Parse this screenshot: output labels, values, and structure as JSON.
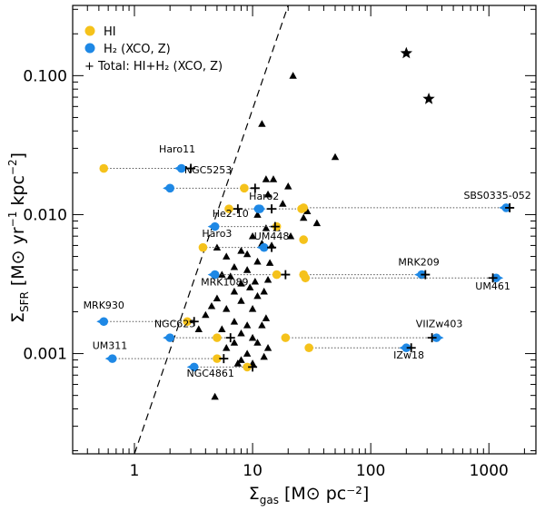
{
  "chart_data": {
    "type": "scatter",
    "xlabel": "Σgas [M⊙ pc⁻²]",
    "ylabel": "ΣSFR [M⊙ yr⁻¹ kpc⁻²]",
    "xlabel_main": "Σ",
    "xlabel_sub": "gas",
    "xlabel_unit": "[M⊙ pc⁻²]",
    "ylabel_main": "Σ",
    "ylabel_sub": "SFR",
    "ylabel_unit_pre": "[M⊙ yr",
    "ylabel_unit_exp1": "−1",
    "ylabel_unit_mid": " kpc",
    "ylabel_unit_exp2": "−2",
    "ylabel_unit_post": "]",
    "xscale": "log",
    "yscale": "log",
    "xlim": [
      0.3,
      2500
    ],
    "ylim": [
      0.00019,
      0.32
    ],
    "xticks": [
      {
        "value": 1,
        "label": "1"
      },
      {
        "value": 10,
        "label": "10"
      },
      {
        "value": 100,
        "label": "100"
      },
      {
        "value": 1000,
        "label": "1000"
      }
    ],
    "yticks": [
      {
        "value": 0.001,
        "label": "0.001"
      },
      {
        "value": 0.01,
        "label": "0.010"
      },
      {
        "value": 0.1,
        "label": "0.100"
      }
    ],
    "legend": {
      "placement": "top-left",
      "entries": [
        {
          "marker": "circle",
          "color": "#f5c21b",
          "label": "HI"
        },
        {
          "marker": "circle",
          "color": "#1e88e5",
          "label": "H₂ (XCO, Z)"
        },
        {
          "marker": "plus",
          "color": "#000000",
          "label": "+ Total: HI+H₂ (XCO, Z)"
        }
      ]
    },
    "colors": {
      "hi": "#f5c21b",
      "h2": "#1e88e5",
      "total": "#000000",
      "reference": "#000000"
    },
    "fit_line": {
      "style": "dashed",
      "points": [
        [
          1,
          0.00019
        ],
        [
          20,
          0.32
        ]
      ]
    },
    "galaxies": [
      {
        "name": "Haro11",
        "sfr": 0.0215,
        "hi": 0.55,
        "h2": 2.5,
        "total": 3.0,
        "label_x": 2.3,
        "label_sfr": 0.028,
        "label_anchor": "middle"
      },
      {
        "name": "NGC5253",
        "sfr": 0.0155,
        "hi": 8.5,
        "h2": 2.0,
        "total": 10.5,
        "label_x": 4.2,
        "label_sfr": 0.0198,
        "label_anchor": "middle"
      },
      {
        "name": "Haro2",
        "sfr": 0.011,
        "hi": 26.0,
        "h2": 11.5,
        "total": 14.5,
        "label_x": 12.5,
        "label_sfr": 0.0128,
        "label_anchor": "middle"
      },
      {
        "name": "",
        "sfr": 0.011,
        "hi": 6.3,
        "h2": 11.2,
        "total": 7.5
      },
      {
        "name": "He2-10",
        "sfr": 0.0082,
        "hi": 16.0,
        "h2": 4.8,
        "total": 15.5,
        "label_x": 6.5,
        "label_sfr": 0.0096,
        "label_anchor": "middle"
      },
      {
        "name": "UM448",
        "sfr": 0.0058,
        "hi": 3.8,
        "h2": 12.5,
        "total": 14.5,
        "label_x": 14.5,
        "label_sfr": 0.0066,
        "label_anchor": "middle"
      },
      {
        "name": "Haro3",
        "sfr": 0.0066,
        "hi": 27.0,
        "h2": 27.0,
        "total": 27.0,
        "label_x": 5.0,
        "label_sfr": 0.0069,
        "label_anchor": "middle",
        "h2_hidden": true,
        "total_hidden": true
      },
      {
        "name": "MRK1089",
        "sfr": 0.0037,
        "hi": 16.0,
        "h2": 4.8,
        "total": 19.0,
        "label_x": 5.8,
        "label_sfr": 0.0031,
        "label_anchor": "middle"
      },
      {
        "name": "SBS0335-052",
        "sfr": 0.0112,
        "hi": 27.0,
        "h2": 1400,
        "total": 1500,
        "label_x": 1180,
        "label_sfr": 0.013,
        "label_anchor": "middle"
      },
      {
        "name": "MRK209",
        "sfr": 0.0037,
        "hi": 27.0,
        "h2": 270,
        "total": 290,
        "label_x": 255,
        "label_sfr": 0.0043,
        "label_anchor": "middle"
      },
      {
        "name": "UM461",
        "sfr": 0.0035,
        "hi": 28.0,
        "h2": 1150,
        "total": 1080,
        "label_x": 1080,
        "label_sfr": 0.0029,
        "label_anchor": "middle"
      },
      {
        "name": "MRK930",
        "sfr": 0.0017,
        "hi": 2.8,
        "h2": 0.55,
        "total": 3.2,
        "label_x": 0.55,
        "label_sfr": 0.0021,
        "label_anchor": "middle"
      },
      {
        "name": "NGC625",
        "sfr": 0.0013,
        "hi": 5.0,
        "h2": 2.0,
        "total": 6.5,
        "label_x": 2.2,
        "label_sfr": 0.00155,
        "label_anchor": "middle"
      },
      {
        "name": "VIIZw403",
        "sfr": 0.0013,
        "hi": 19.0,
        "h2": 360,
        "total": 330,
        "label_x": 380,
        "label_sfr": 0.00155,
        "label_anchor": "middle"
      },
      {
        "name": "UM311",
        "sfr": 0.00092,
        "hi": 5.0,
        "h2": 0.65,
        "total": 5.7,
        "label_x": 0.62,
        "label_sfr": 0.00108,
        "label_anchor": "middle"
      },
      {
        "name": "IZw18",
        "sfr": 0.0011,
        "hi": 30.0,
        "h2": 200,
        "total": 220,
        "label_x": 210,
        "label_sfr": 0.00092,
        "label_anchor": "middle"
      },
      {
        "name": "NGC4861",
        "sfr": 0.0008,
        "hi": 9.0,
        "h2": 3.2,
        "total": 10.0,
        "label_x": 4.4,
        "label_sfr": 0.00068,
        "label_anchor": "middle"
      }
    ],
    "triangles": [
      [
        12,
        0.045
      ],
      [
        22,
        0.1
      ],
      [
        50,
        0.026
      ],
      [
        13,
        0.018
      ],
      [
        13.5,
        0.014
      ],
      [
        15,
        0.018
      ],
      [
        20,
        0.016
      ],
      [
        18,
        0.012
      ],
      [
        11,
        0.01
      ],
      [
        13,
        0.008
      ],
      [
        16,
        0.008
      ],
      [
        21,
        0.007
      ],
      [
        10,
        0.007
      ],
      [
        12,
        0.0062
      ],
      [
        14.5,
        0.006
      ],
      [
        8,
        0.0055
      ],
      [
        6,
        0.005
      ],
      [
        5,
        0.0058
      ],
      [
        9,
        0.0052
      ],
      [
        11,
        0.0046
      ],
      [
        14,
        0.0045
      ],
      [
        7,
        0.0042
      ],
      [
        9,
        0.004
      ],
      [
        5.5,
        0.0037
      ],
      [
        6.5,
        0.0036
      ],
      [
        10.5,
        0.0033
      ],
      [
        13.5,
        0.0034
      ],
      [
        8,
        0.0032
      ],
      [
        9.5,
        0.003
      ],
      [
        12.5,
        0.0028
      ],
      [
        7,
        0.0028
      ],
      [
        11,
        0.0026
      ],
      [
        5,
        0.0025
      ],
      [
        4.5,
        0.0022
      ],
      [
        8,
        0.0024
      ],
      [
        6,
        0.0021
      ],
      [
        10,
        0.0021
      ],
      [
        13,
        0.0018
      ],
      [
        4,
        0.0019
      ],
      [
        7,
        0.0017
      ],
      [
        9,
        0.0016
      ],
      [
        12,
        0.0016
      ],
      [
        3.5,
        0.0015
      ],
      [
        5.5,
        0.0015
      ],
      [
        8,
        0.0014
      ],
      [
        10,
        0.0013
      ],
      [
        7,
        0.0012
      ],
      [
        11,
        0.0012
      ],
      [
        13.5,
        0.0011
      ],
      [
        9,
        0.001
      ],
      [
        6,
        0.0011
      ],
      [
        8,
        0.0009
      ],
      [
        10,
        0.00085
      ],
      [
        7.5,
        0.00085
      ],
      [
        12.5,
        0.00095
      ],
      [
        4.8,
        0.00049
      ],
      [
        29,
        0.0106
      ],
      [
        27,
        0.0095
      ],
      [
        35,
        0.0087
      ]
    ],
    "stars": [
      [
        200,
        0.145
      ],
      [
        310,
        0.068
      ]
    ]
  }
}
